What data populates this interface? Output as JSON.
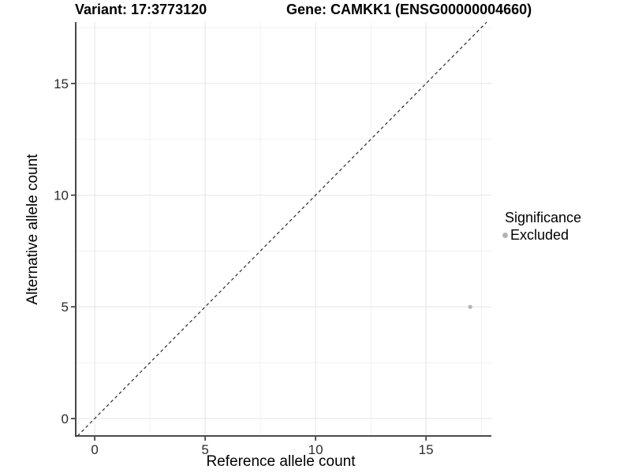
{
  "figure": {
    "title_variant": "Variant: 17:3773120",
    "title_gene": "Gene: CAMKK1 (ENSG00000004660)"
  },
  "axes": {
    "x_title": "Reference allele count",
    "y_title": "Alternative allele count"
  },
  "legend": {
    "title": "Significance",
    "items": [
      {
        "label": "Excluded",
        "color": "#b4b4b4"
      }
    ]
  },
  "chart_data": {
    "type": "scatter",
    "title": "Variant: 17:3773120 — Gene: CAMKK1 (ENSG00000004660)",
    "xlabel": "Reference allele count",
    "ylabel": "Alternative allele count",
    "xlim": [
      -0.86,
      17.96
    ],
    "ylim": [
      -0.78,
      17.75
    ],
    "x_ticks": [
      0,
      5,
      10,
      15
    ],
    "y_ticks": [
      0,
      5,
      10,
      15
    ],
    "x_minor_ticks": [
      2.5,
      7.5,
      12.5,
      17.5
    ],
    "y_minor_ticks": [
      2.5,
      7.5,
      12.5,
      17.5
    ],
    "grid": "major and minor, light gray, white background",
    "legend_position": "right",
    "series": [
      {
        "name": "Excluded",
        "color": "#b4b4b4",
        "points": [
          {
            "x": 17,
            "y": 5
          }
        ]
      }
    ],
    "reference_line": {
      "kind": "identity y=x",
      "style": "dashed",
      "color": "#2b2b2b"
    }
  },
  "style": {
    "major_grid_color": "#e4e4e4",
    "minor_grid_color": "#f1f1f1",
    "axis_line_color": "#333333",
    "tick_color": "#333333",
    "tick_label_color": "#2b2b2b",
    "point_color": "#b4b4b4"
  }
}
